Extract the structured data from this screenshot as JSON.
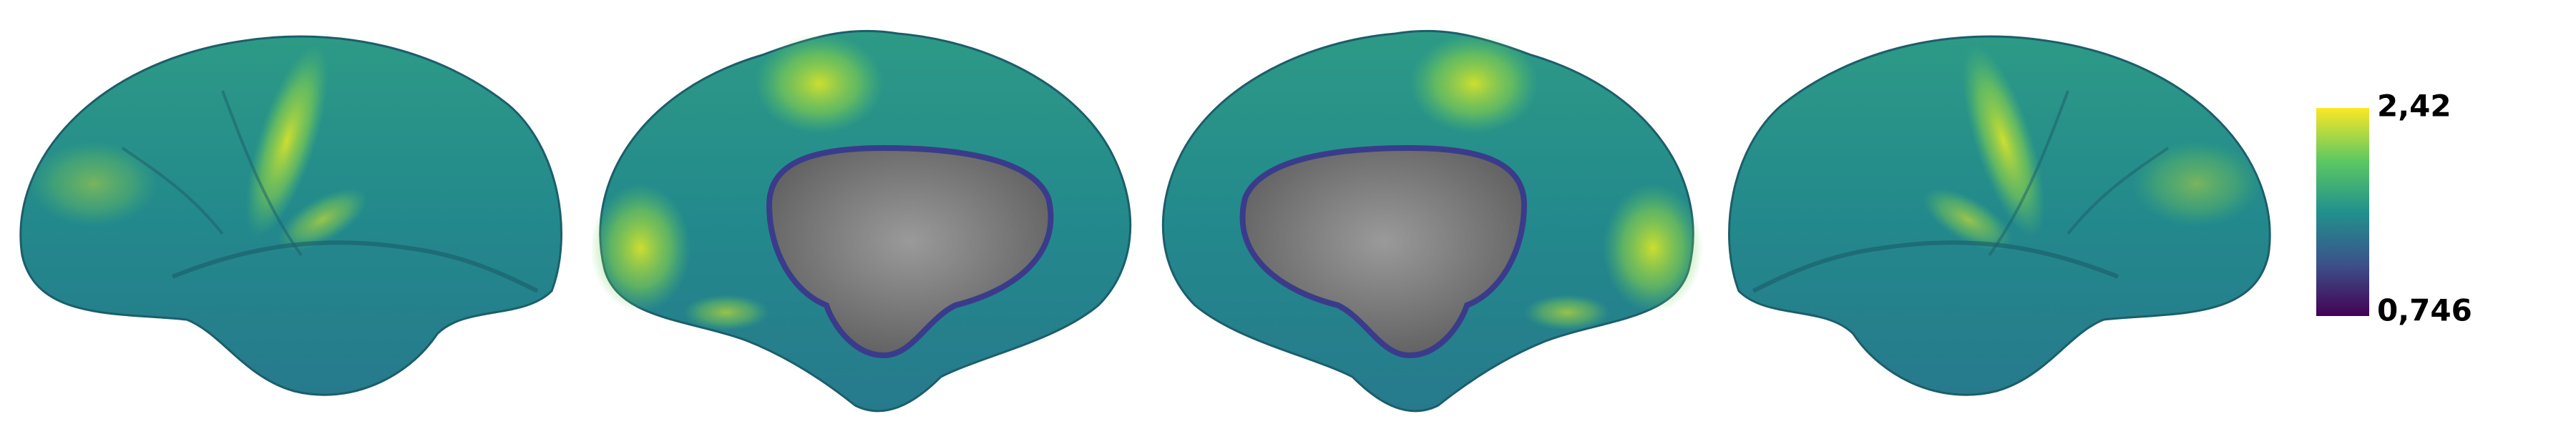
{
  "colorbar": {
    "max_label": "2,42",
    "min_label": "0,746"
  }
}
